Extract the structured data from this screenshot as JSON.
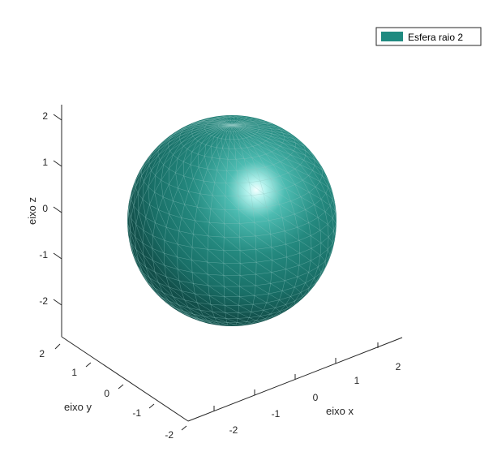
{
  "chart_data": {
    "type": "surface",
    "surface": "sphere",
    "radius": 2,
    "center": [
      0,
      0,
      0
    ],
    "series": [
      {
        "name": "Esfera raio 2",
        "color": "#1f8a80",
        "edge_color": "#8fc7c1"
      }
    ],
    "xlabel": "eixo x",
    "ylabel": "eixo y",
    "zlabel": "eixo z",
    "xlim": [
      -2.5,
      2.5
    ],
    "ylim": [
      -2.5,
      2.5
    ],
    "zlim": [
      -2.5,
      2.5
    ],
    "x_ticks": [
      "-2",
      "-1",
      "0",
      "1",
      "2"
    ],
    "y_ticks": [
      "-2",
      "-1",
      "0",
      "1",
      "2"
    ],
    "z_ticks": [
      "-2",
      "-1",
      "0",
      "1",
      "2"
    ],
    "view": "3d",
    "grid": false,
    "legend_position": "top-right",
    "lighting": "headlight-specular"
  }
}
